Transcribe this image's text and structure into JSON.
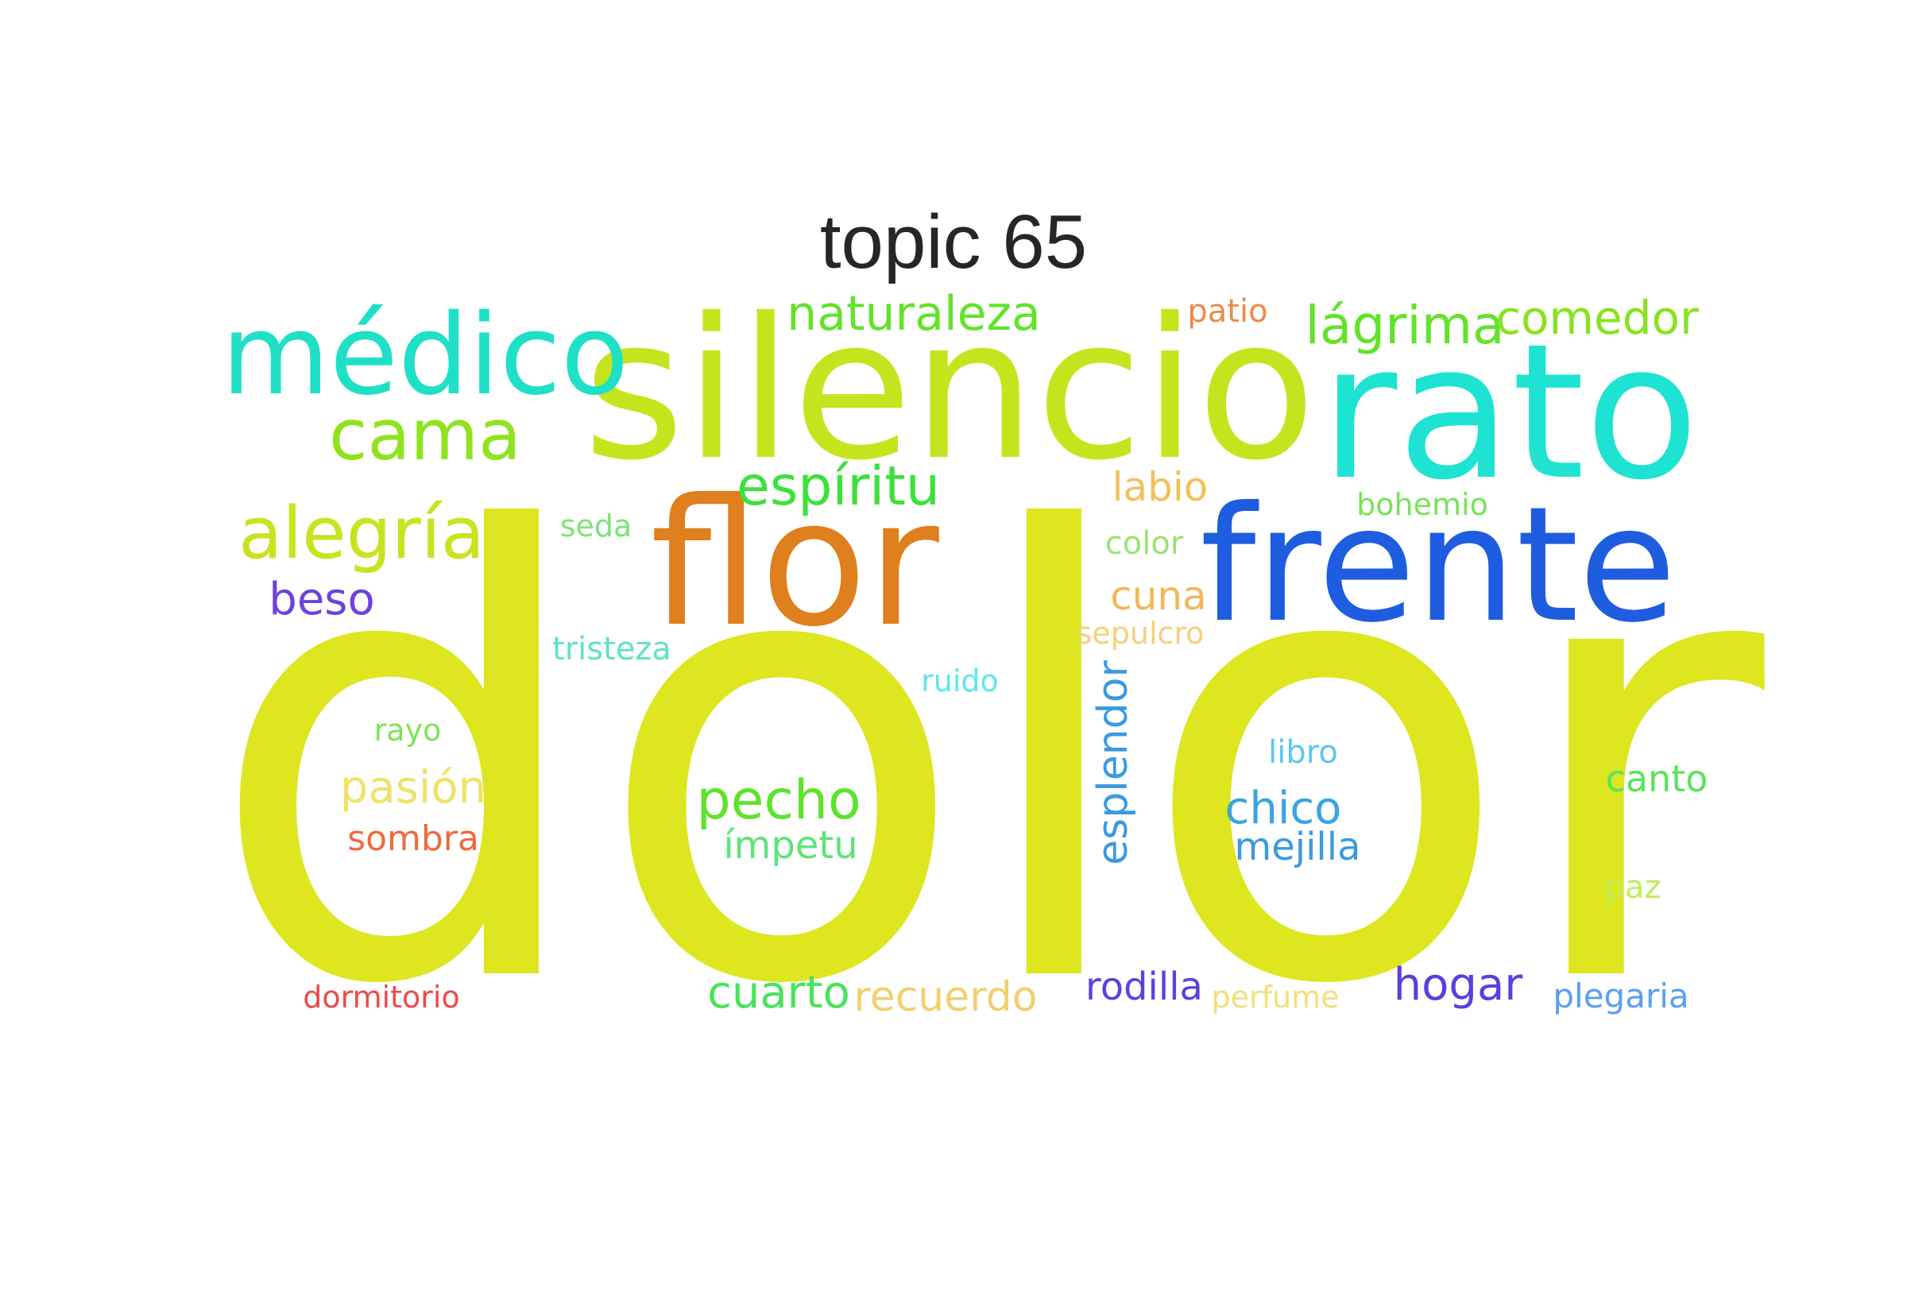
{
  "title": "topic 65",
  "words": [
    {
      "text": "dolor",
      "color": "#dde61f"
    },
    {
      "text": "silencio",
      "color": "#c4e51e"
    },
    {
      "text": "rato",
      "color": "#1fe3d2"
    },
    {
      "text": "frente",
      "color": "#1e5de0"
    },
    {
      "text": "flor",
      "color": "#e07f1e"
    },
    {
      "text": "médico",
      "color": "#1fe0c6"
    },
    {
      "text": "cama",
      "color": "#8fe31f"
    },
    {
      "text": "alegría",
      "color": "#c9e31f"
    },
    {
      "text": "naturaleza",
      "color": "#62e32a"
    },
    {
      "text": "lágrima",
      "color": "#62e32a"
    },
    {
      "text": "comedor",
      "color": "#88e31f"
    },
    {
      "text": "espíritu",
      "color": "#3ae23a"
    },
    {
      "text": "pecho",
      "color": "#5ee32a"
    },
    {
      "text": "patio",
      "color": "#ef8a48"
    },
    {
      "text": "labio",
      "color": "#f0c25a"
    },
    {
      "text": "bohemio",
      "color": "#78e35a"
    },
    {
      "text": "seda",
      "color": "#7ee37a"
    },
    {
      "text": "color",
      "color": "#9ae374"
    },
    {
      "text": "beso",
      "color": "#6d42e0"
    },
    {
      "text": "cuna",
      "color": "#f0b85a"
    },
    {
      "text": "sepulcro",
      "color": "#f2d27a"
    },
    {
      "text": "tristeza",
      "color": "#5ee3c4"
    },
    {
      "text": "ruido",
      "color": "#5be8ee"
    },
    {
      "text": "rayo",
      "color": "#7ee35a"
    },
    {
      "text": "esplendor",
      "color": "#3a9ae0"
    },
    {
      "text": "libro",
      "color": "#5ac8ee"
    },
    {
      "text": "canto",
      "color": "#5ae35a"
    },
    {
      "text": "pasión",
      "color": "#eee36a"
    },
    {
      "text": "chico",
      "color": "#3aa4e0"
    },
    {
      "text": "sombra",
      "color": "#ee6a3e"
    },
    {
      "text": "ímpetu",
      "color": "#5ee37a"
    },
    {
      "text": "mejilla",
      "color": "#3a9ae0"
    },
    {
      "text": "paz",
      "color": "#bfee5a"
    },
    {
      "text": "dormitorio",
      "color": "#ee4a4a"
    },
    {
      "text": "cuarto",
      "color": "#4ae35a"
    },
    {
      "text": "recuerdo",
      "color": "#f0d070"
    },
    {
      "text": "rodilla",
      "color": "#5a42e0"
    },
    {
      "text": "perfume",
      "color": "#f2e07a"
    },
    {
      "text": "hogar",
      "color": "#5a3ee0"
    },
    {
      "text": "plegaria",
      "color": "#5aa0ee"
    }
  ]
}
